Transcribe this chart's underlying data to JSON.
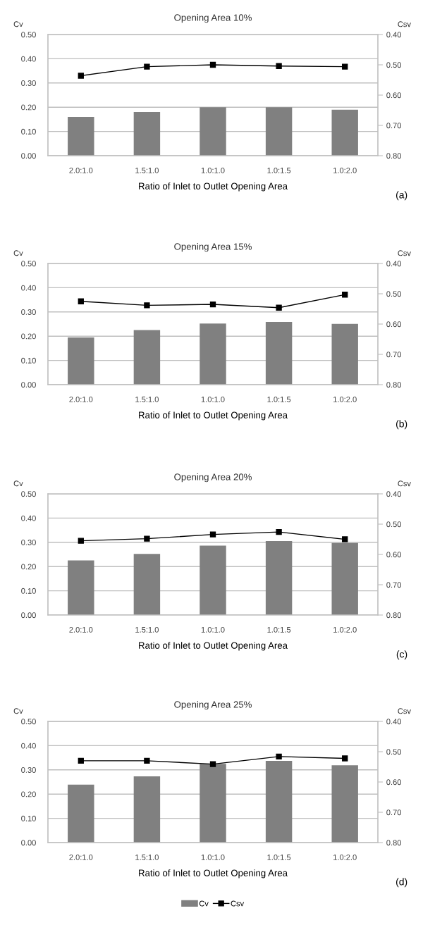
{
  "chart_data": [
    {
      "type": "bar",
      "title": "Opening Area 10%",
      "xlabel": "Ratio of Inlet to Outlet Opening Area",
      "ylabel": "Cv",
      "y2label": "Csv",
      "annotations": [
        "(a)"
      ],
      "categories": [
        "2.0:1.0",
        "1.5:1.0",
        "1.0:1.0",
        "1.0:1.5",
        "1.0:2.0"
      ],
      "series": [
        {
          "type": "bar",
          "color": "#808080",
          "values": [
            0.16,
            0.18,
            0.2,
            0.2,
            0.19
          ]
        },
        {
          "type": "line",
          "axis": "y2",
          "color": "#000000",
          "marker": "square",
          "values": [
            0.536,
            0.506,
            0.5,
            0.504,
            0.506
          ]
        }
      ],
      "ylim": [
        0,
        0.5
      ],
      "yticks": [
        {
          "value": 0,
          "label": "0.00"
        },
        {
          "value": 0.1,
          "label": "0.10"
        },
        {
          "value": 0.2,
          "label": "0.20"
        },
        {
          "value": 0.3,
          "label": "0.30"
        },
        {
          "value": 0.4,
          "label": "0.40"
        },
        {
          "value": 0.5,
          "label": "0.50"
        }
      ],
      "y2lim": [
        0.8,
        0.4
      ],
      "y2ticks": [
        {
          "value": 0.4,
          "label": "0.40"
        },
        {
          "value": 0.5,
          "label": "0.50"
        },
        {
          "value": 0.6,
          "label": "0.60"
        },
        {
          "value": 0.7,
          "label": "0.70"
        },
        {
          "value": 0.8,
          "label": "0.80"
        }
      ],
      "grid": "y",
      "legend": false
    },
    {
      "type": "bar",
      "title": "Opening Area 15%",
      "xlabel": "Ratio of Inlet to Outlet Opening Area",
      "ylabel": "Cv",
      "y2label": "Csv",
      "annotations": [
        "(b)"
      ],
      "categories": [
        "2.0:1.0",
        "1.5:1.0",
        "1.0:1.0",
        "1.0:1.5",
        "1.0:2.0"
      ],
      "series": [
        {
          "type": "bar",
          "color": "#808080",
          "values": [
            0.195,
            0.225,
            0.252,
            0.259,
            0.251
          ]
        },
        {
          "type": "line",
          "axis": "y2",
          "color": "#000000",
          "marker": "square",
          "values": [
            0.525,
            0.538,
            0.535,
            0.546,
            0.503
          ]
        }
      ],
      "ylim": [
        0,
        0.5
      ],
      "yticks": [
        {
          "value": 0,
          "label": "0.00"
        },
        {
          "value": 0.1,
          "label": "0.10"
        },
        {
          "value": 0.2,
          "label": "0.20"
        },
        {
          "value": 0.3,
          "label": "0.30"
        },
        {
          "value": 0.4,
          "label": "0.40"
        },
        {
          "value": 0.5,
          "label": "0.50"
        }
      ],
      "y2lim": [
        0.8,
        0.4
      ],
      "y2ticks": [
        {
          "value": 0.4,
          "label": "0.40"
        },
        {
          "value": 0.5,
          "label": "0.50"
        },
        {
          "value": 0.6,
          "label": "0.60"
        },
        {
          "value": 0.7,
          "label": "0.70"
        },
        {
          "value": 0.8,
          "label": "0.80"
        }
      ],
      "grid": "y",
      "legend": false
    },
    {
      "type": "bar",
      "title": "Opening Area 20%",
      "xlabel": "Ratio of Inlet to Outlet Opening Area",
      "ylabel": "Cv",
      "y2label": "Csv",
      "annotations": [
        "(c)"
      ],
      "categories": [
        "2.0:1.0",
        "1.5:1.0",
        "1.0:1.0",
        "1.0:1.5",
        "1.0:2.0"
      ],
      "series": [
        {
          "type": "bar",
          "color": "#808080",
          "values": [
            0.225,
            0.252,
            0.286,
            0.305,
            0.297
          ]
        },
        {
          "type": "line",
          "axis": "y2",
          "color": "#000000",
          "marker": "square",
          "values": [
            0.555,
            0.548,
            0.534,
            0.526,
            0.55
          ]
        }
      ],
      "ylim": [
        0,
        0.5
      ],
      "yticks": [
        {
          "value": 0,
          "label": "0.00"
        },
        {
          "value": 0.1,
          "label": "0.10"
        },
        {
          "value": 0.2,
          "label": "0.20"
        },
        {
          "value": 0.3,
          "label": "0.30"
        },
        {
          "value": 0.4,
          "label": "0.40"
        },
        {
          "value": 0.5,
          "label": "0.50"
        }
      ],
      "y2lim": [
        0.8,
        0.4
      ],
      "y2ticks": [
        {
          "value": 0.4,
          "label": "0.40"
        },
        {
          "value": 0.5,
          "label": "0.50"
        },
        {
          "value": 0.6,
          "label": "0.60"
        },
        {
          "value": 0.7,
          "label": "0.70"
        },
        {
          "value": 0.8,
          "label": "0.80"
        }
      ],
      "grid": "y",
      "legend": false
    },
    {
      "type": "bar",
      "title": "Opening Area 25%",
      "xlabel": "Ratio of Inlet to Outlet Opening Area",
      "ylabel": "Cv",
      "y2label": "Csv",
      "annotations": [
        "(d)"
      ],
      "categories": [
        "2.0:1.0",
        "1.5:1.0",
        "1.0:1.0",
        "1.0:1.5",
        "1.0:2.0"
      ],
      "series": [
        {
          "type": "bar",
          "name": "Cv",
          "color": "#808080",
          "values": [
            0.239,
            0.273,
            0.325,
            0.337,
            0.319
          ]
        },
        {
          "type": "line",
          "name": "Csv",
          "axis": "y2",
          "color": "#000000",
          "marker": "square",
          "values": [
            0.53,
            0.53,
            0.541,
            0.516,
            0.522
          ]
        }
      ],
      "ylim": [
        0,
        0.5
      ],
      "yticks": [
        {
          "value": 0,
          "label": "0.00"
        },
        {
          "value": 0.1,
          "label": "0.10"
        },
        {
          "value": 0.2,
          "label": "0.20"
        },
        {
          "value": 0.3,
          "label": "0.30"
        },
        {
          "value": 0.4,
          "label": "0.40"
        },
        {
          "value": 0.5,
          "label": "0.50"
        }
      ],
      "y2lim": [
        0.8,
        0.4
      ],
      "y2ticks": [
        {
          "value": 0.4,
          "label": "0.40"
        },
        {
          "value": 0.5,
          "label": "0.50"
        },
        {
          "value": 0.6,
          "label": "0.60"
        },
        {
          "value": 0.7,
          "label": "0.70"
        },
        {
          "value": 0.8,
          "label": "0.80"
        }
      ],
      "grid": "y",
      "legend": "bottom"
    }
  ]
}
